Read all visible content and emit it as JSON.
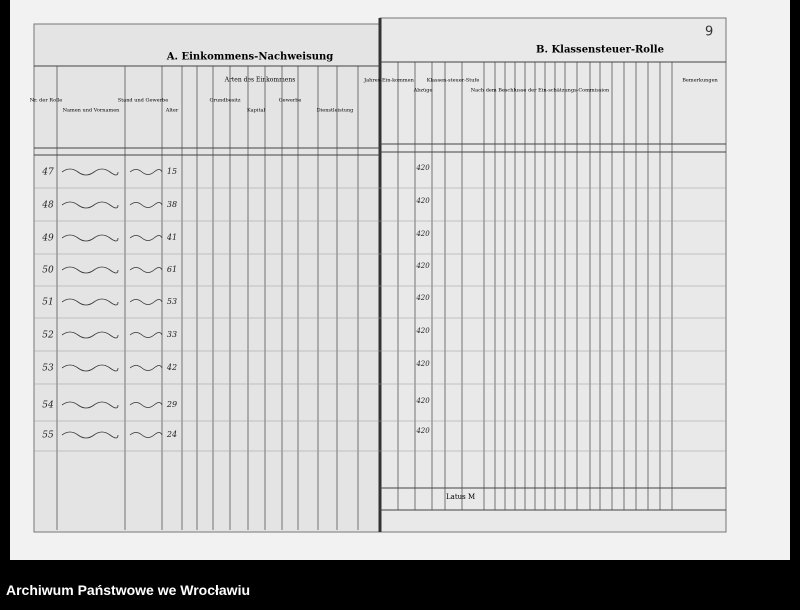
{
  "archive_label": "Archiwum Państwowe we Wrocławiu",
  "page_number": "9",
  "left_page": {
    "title": "A. Einkommens-Nachweisung",
    "subtitle": "Arten des Einkommens",
    "headers": [
      "Nr. der Rolle",
      "Namen und Vornamen",
      "Stand und Gewerbe",
      "Alter",
      "Grundbesitz",
      "Kapital",
      "Gewerbe",
      "Dienstleistung"
    ],
    "rows": [
      {
        "number": "47",
        "age": "15"
      },
      {
        "number": "48",
        "age": "38"
      },
      {
        "number": "49",
        "age": "41"
      },
      {
        "number": "50",
        "age": "61"
      },
      {
        "number": "51",
        "age": "53"
      },
      {
        "number": "52",
        "age": "33"
      },
      {
        "number": "53",
        "age": "42"
      },
      {
        "number": "54",
        "age": "29"
      },
      {
        "number": "55",
        "age": "24"
      }
    ]
  },
  "right_page": {
    "title": "B. Klassensteuer-Rolle",
    "headers": [
      "Jahres-Ein-kommen",
      "Abzüge",
      "Klassen-steuer-Stufe",
      "Nach dem Beschlusse der Ein-schätzungs-Commission",
      "Bemerkungen"
    ],
    "rows": [
      {
        "amount": "420"
      },
      {
        "amount": "420"
      },
      {
        "amount": "420"
      },
      {
        "amount": "420"
      },
      {
        "amount": "420"
      },
      {
        "amount": "420"
      },
      {
        "amount": "420"
      },
      {
        "amount": "420"
      },
      {
        "amount": "420"
      }
    ],
    "footer": "Latus M"
  }
}
